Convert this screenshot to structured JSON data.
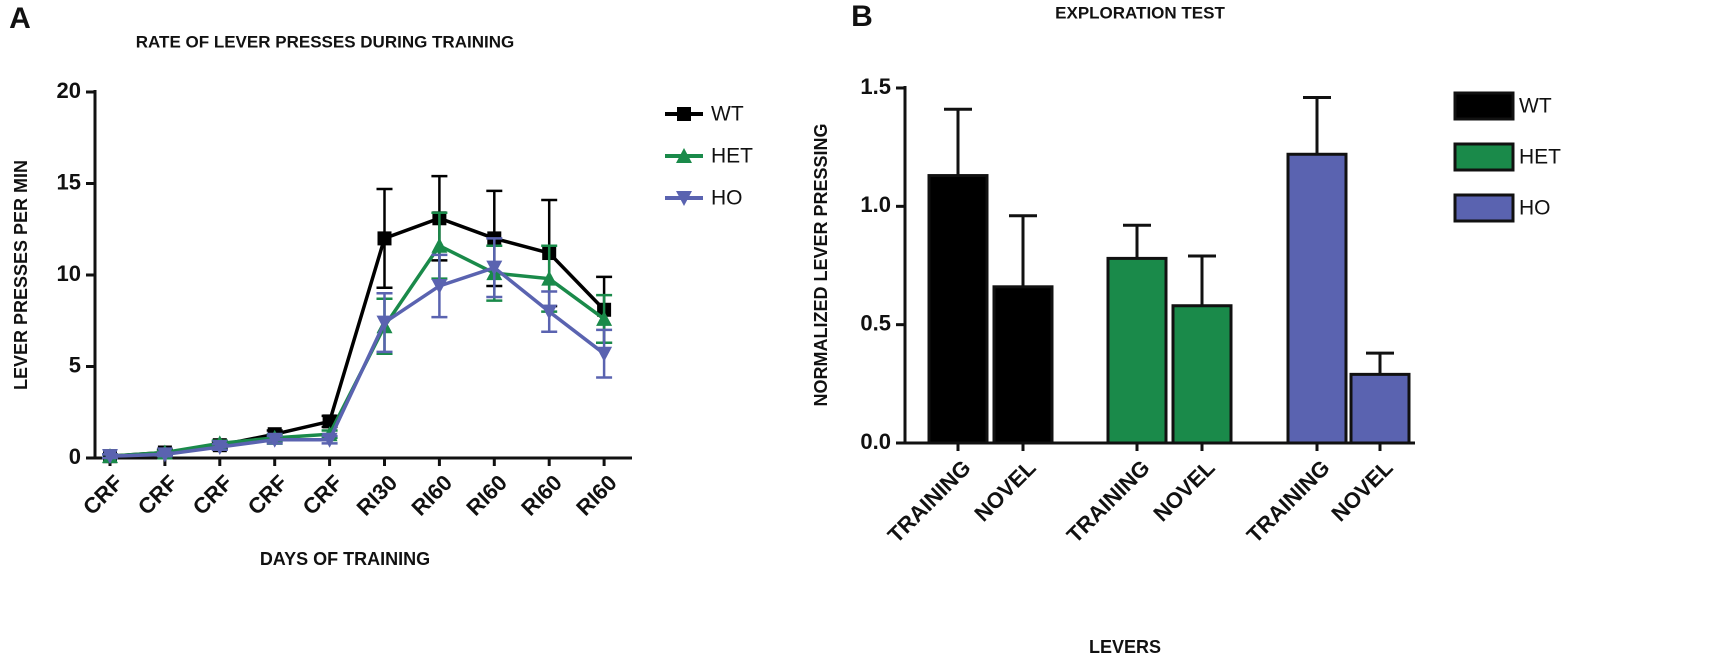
{
  "chart_data": [
    {
      "type": "line",
      "panel_label": "A",
      "title": "RATE OF LEVER PRESSES DURING TRAINING",
      "x_label": "DAYS OF TRAINING",
      "y_label": "LEVER PRESSES PER MIN",
      "categories": [
        "CRF",
        "CRF",
        "CRF",
        "CRF",
        "CRF",
        "RI30",
        "RI60",
        "RI60",
        "RI60",
        "RI60"
      ],
      "ylim": [
        0,
        20
      ],
      "yticks": [
        0,
        5,
        10,
        15,
        20
      ],
      "series": [
        {
          "name": "WT",
          "color": "#000000",
          "marker": "square",
          "values": [
            0.1,
            0.3,
            0.7,
            1.3,
            2.0,
            12.0,
            13.1,
            12.0,
            11.2,
            8.1
          ],
          "errors": [
            0.1,
            0.15,
            0.2,
            0.2,
            0.3,
            2.7,
            2.3,
            2.6,
            2.9,
            1.8
          ]
        },
        {
          "name": "HET",
          "color": "#1a8a4a",
          "marker": "triangle-up",
          "values": [
            0.1,
            0.3,
            0.8,
            1.1,
            1.3,
            7.2,
            11.6,
            10.1,
            9.8,
            7.6
          ],
          "errors": [
            0.1,
            0.1,
            0.15,
            0.2,
            0.2,
            1.5,
            1.8,
            1.5,
            1.8,
            1.3
          ]
        },
        {
          "name": "HO",
          "color": "#5a63b0",
          "marker": "triangle-down",
          "values": [
            0.1,
            0.2,
            0.6,
            1.0,
            1.0,
            7.4,
            9.4,
            10.4,
            8.0,
            5.7
          ],
          "errors": [
            0.1,
            0.1,
            0.15,
            0.2,
            0.2,
            1.6,
            1.7,
            1.6,
            1.1,
            1.3
          ]
        }
      ]
    },
    {
      "type": "bar",
      "panel_label": "B",
      "title": "EXPLORATION TEST",
      "x_label": "LEVERS",
      "y_label": "NORMALIZED LEVER PRESSING",
      "categories": [
        "TRAINING",
        "NOVEL",
        "TRAINING",
        "NOVEL",
        "TRAINING",
        "NOVEL"
      ],
      "ylim": [
        0,
        1.5
      ],
      "yticks": [
        {
          "value": 0,
          "label": "0.0"
        },
        0.5,
        {
          "value": 1,
          "label": "1.0"
        },
        1.5
      ],
      "series": [
        {
          "name": "WT",
          "color": "#000000",
          "values": [
            1.13,
            0.66,
            null,
            null,
            null,
            null
          ],
          "errors": [
            0.28,
            0.3,
            null,
            null,
            null,
            null
          ]
        },
        {
          "name": "HET",
          "color": "#1a8a4a",
          "values": [
            null,
            null,
            0.78,
            0.58,
            null,
            null
          ],
          "errors": [
            null,
            null,
            0.14,
            0.21,
            null,
            null
          ]
        },
        {
          "name": "HO",
          "color": "#5a63b0",
          "values": [
            null,
            null,
            null,
            null,
            1.22,
            0.29
          ],
          "errors": [
            null,
            null,
            null,
            null,
            0.24,
            0.09
          ]
        }
      ]
    }
  ]
}
